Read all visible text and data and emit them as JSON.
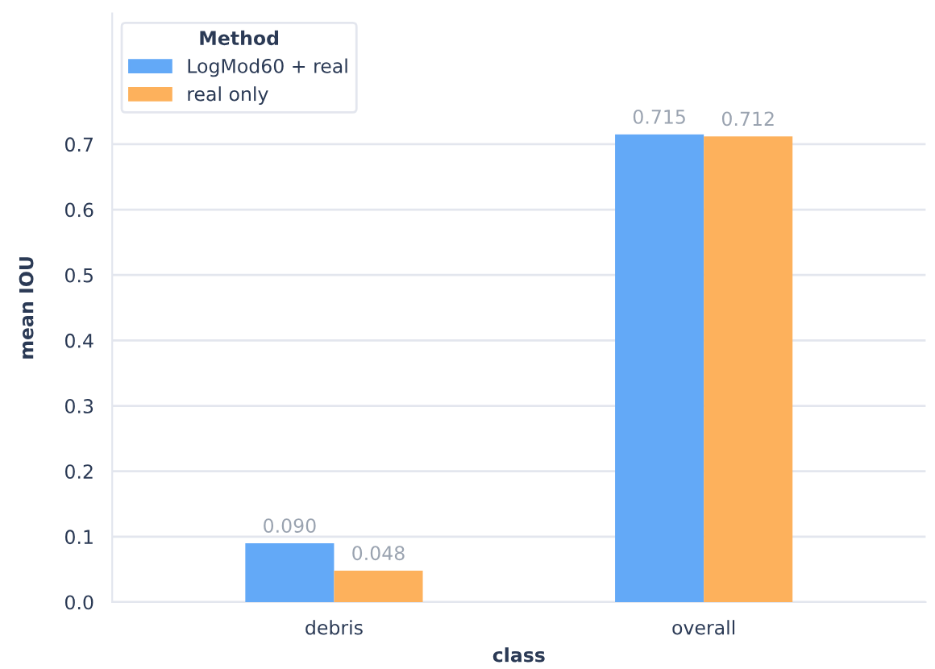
{
  "chart_data": {
    "type": "bar",
    "xlabel": "class",
    "ylabel": "mean IOU",
    "legend_title": "Method",
    "categories": [
      "debris",
      "overall"
    ],
    "series": [
      {
        "name": "LogMod60 + real",
        "color": "#63a9f7",
        "values": [
          0.09,
          0.715
        ]
      },
      {
        "name": "real only",
        "color": "#fdb15c",
        "values": [
          0.048,
          0.712
        ]
      }
    ],
    "value_labels": [
      [
        "0.090",
        "0.715"
      ],
      [
        "0.048",
        "0.712"
      ]
    ],
    "ylim": [
      0,
      0.9
    ],
    "yticks": [
      {
        "value": 0,
        "label": "0.0"
      },
      0.1,
      0.2,
      0.3,
      0.4,
      0.5,
      0.6,
      0.7
    ],
    "grid": "y",
    "legend": "top left"
  }
}
